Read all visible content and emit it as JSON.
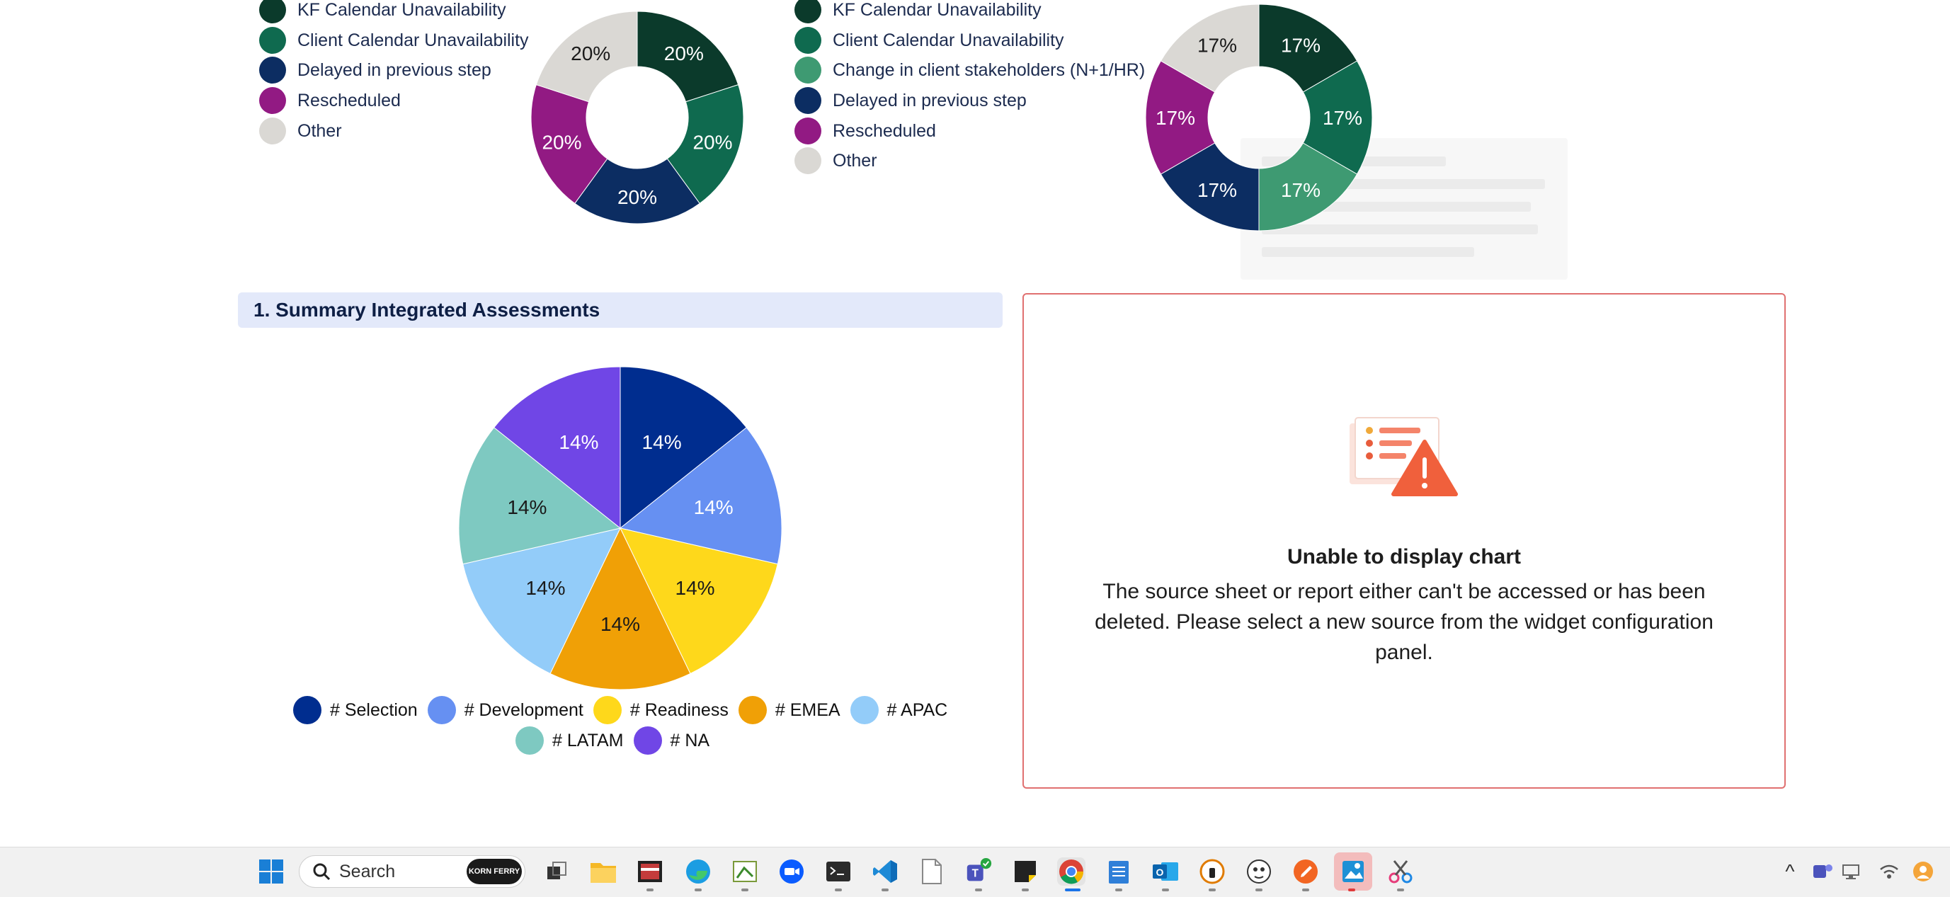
{
  "top_left_legend": {
    "items": [
      {
        "label": "KF Calendar Unavailability",
        "color": "#0b3a2b"
      },
      {
        "label": "Client Calendar Unavailability",
        "color": "#0f6a4f"
      },
      {
        "label": "Delayed in previous step",
        "color": "#0c2d62"
      },
      {
        "label": "Rescheduled",
        "color": "#921a83"
      },
      {
        "label": "Other",
        "color": "#dad8d4"
      }
    ]
  },
  "top_right_legend": {
    "items": [
      {
        "label": "KF Calendar Unavailability",
        "color": "#0b3a2b"
      },
      {
        "label": "Client Calendar Unavailability",
        "color": "#0f6a4f"
      },
      {
        "label": "Change in client stakeholders (N+1/HR)",
        "color": "#3e9a72"
      },
      {
        "label": "Delayed in previous step",
        "color": "#0c2d62"
      },
      {
        "label": "Rescheduled",
        "color": "#921a83"
      },
      {
        "label": "Other",
        "color": "#dad8d4"
      }
    ]
  },
  "section": {
    "title": "1. Summary Integrated Assessments"
  },
  "error_panel": {
    "title": "Unable to display chart",
    "message": "The source sheet or report either can't be accessed or has been deleted. Please select a new source from the widget configuration panel."
  },
  "chart_data": [
    {
      "type": "pie",
      "variant": "donut",
      "categories": [
        "KF Calendar Unavailability",
        "Client Calendar Unavailability",
        "Delayed in previous step",
        "Rescheduled",
        "Other"
      ],
      "values": [
        20,
        20,
        20,
        20,
        20
      ],
      "labels": [
        "20%",
        "20%",
        "20%",
        "20%",
        "20%"
      ],
      "colors": [
        "#0b3a2b",
        "#0f6a4f",
        "#0c2d62",
        "#921a83",
        "#dad8d4"
      ],
      "label_colors": [
        "#ffffff",
        "#ffffff",
        "#ffffff",
        "#ffffff",
        "#1a1a1a"
      ],
      "legend": "left"
    },
    {
      "type": "pie",
      "variant": "donut",
      "categories": [
        "KF Calendar Unavailability",
        "Client Calendar Unavailability",
        "Change in client stakeholders (N+1/HR)",
        "Delayed in previous step",
        "Rescheduled",
        "Other"
      ],
      "values": [
        17,
        17,
        17,
        17,
        17,
        17
      ],
      "labels": [
        "17%",
        "17%",
        "17%",
        "17%",
        "17%",
        "17%"
      ],
      "colors": [
        "#0b3a2b",
        "#0f6a4f",
        "#3e9a72",
        "#0c2d62",
        "#921a83",
        "#dad8d4"
      ],
      "label_colors": [
        "#ffffff",
        "#ffffff",
        "#ffffff",
        "#ffffff",
        "#ffffff",
        "#1a1a1a"
      ],
      "legend": "left"
    },
    {
      "type": "pie",
      "categories": [
        "# Selection",
        "# Development",
        "# Readiness",
        "# EMEA",
        "# APAC",
        "# LATAM",
        "# NA"
      ],
      "values": [
        14,
        14,
        14,
        14,
        14,
        14,
        14
      ],
      "labels": [
        "14%",
        "14%",
        "14%",
        "14%",
        "14%",
        "14%",
        "14%"
      ],
      "colors": [
        "#002d8f",
        "#6690f2",
        "#fed81b",
        "#f0a006",
        "#93ccf9",
        "#7ec9c1",
        "#7046e6"
      ],
      "label_colors": [
        "#ffffff",
        "#ffffff",
        "#1a1a1a",
        "#1a1a1a",
        "#1a1a1a",
        "#1a1a1a",
        "#ffffff"
      ],
      "legend": "bottom"
    }
  ],
  "taskbar": {
    "search_placeholder": "Search",
    "kf_badge": "KORN FERRY",
    "icons": [
      "windows-start-icon",
      "task-view-icon",
      "file-explorer-icon",
      "media-player-icon",
      "edge-icon",
      "sketch-app-icon",
      "zoom-icon",
      "terminal-icon",
      "vscode-icon",
      "notepad-icon",
      "teams-icon",
      "sticky-notes-icon",
      "chrome-icon",
      "notepad-blue-icon",
      "outlook-icon",
      "vpn-icon",
      "cat-app-icon",
      "pen-app-icon",
      "photos-icon",
      "snipping-tool-icon"
    ],
    "tray_icons": [
      "chevron-up-icon",
      "teams-tray-icon",
      "network-icon",
      "wifi-icon",
      "account-icon"
    ],
    "tray_chevron": "^"
  }
}
